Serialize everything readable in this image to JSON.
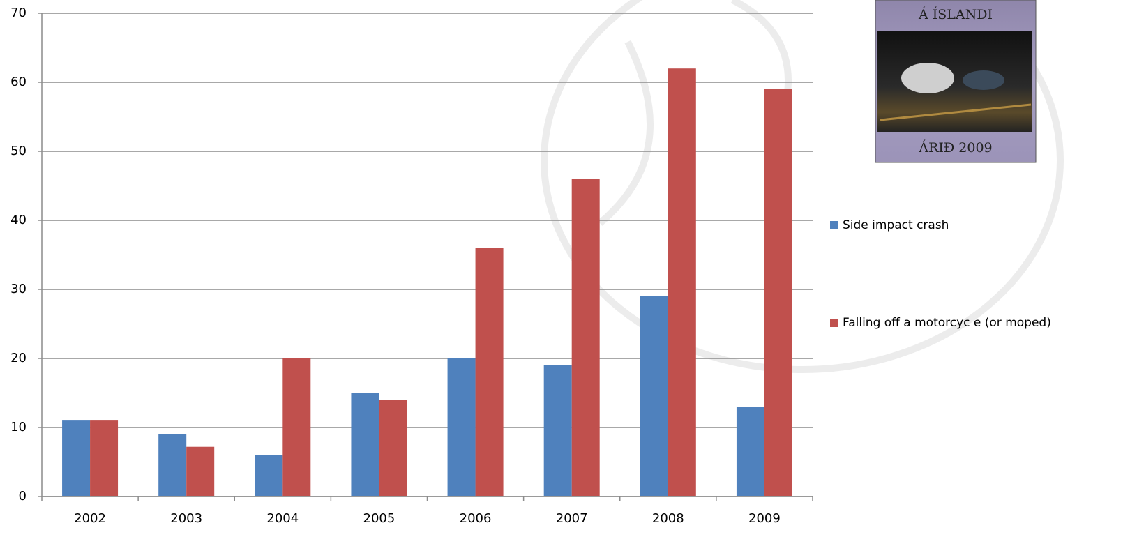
{
  "chart_data": {
    "type": "bar",
    "categories": [
      "2002",
      "2003",
      "2004",
      "2005",
      "2006",
      "2007",
      "2008",
      "2009"
    ],
    "series": [
      {
        "name": "Side impact crash",
        "color": "#4f81bd",
        "values": [
          11,
          9,
          6,
          15,
          20,
          19,
          29,
          13
        ]
      },
      {
        "name": "Falling off a motorcyc e (or moped)",
        "color": "#c0504d",
        "values": [
          11,
          7.2,
          20,
          14,
          36,
          46,
          62,
          59
        ]
      }
    ],
    "ylim": [
      0,
      70
    ],
    "yticks": [
      0,
      10,
      20,
      30,
      40,
      50,
      60,
      70
    ],
    "grid": true,
    "legend": "right"
  },
  "cover": {
    "top": "Á ÍSLANDI",
    "bottom": "ÁRIÐ 2009"
  }
}
